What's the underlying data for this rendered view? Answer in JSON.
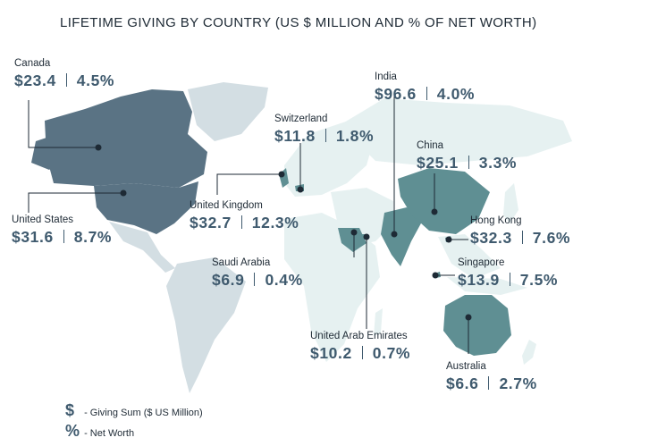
{
  "title": "LIFETIME GIVING BY COUNTRY (US $ MILLION AND % OF NET WORTH)",
  "colors": {
    "highlight": "#5f8f93",
    "north_america": "#5a7384",
    "land": "#d3dee3",
    "land_light": "#e6f1f1",
    "text": "#1e2a35",
    "value": "#3f5a6e"
  },
  "entries": [
    {
      "country": "Canada",
      "sum": "$23.4",
      "pct": "4.5%"
    },
    {
      "country": "United States",
      "sum": "$31.6",
      "pct": "8.7%"
    },
    {
      "country": "United Kingdom",
      "sum": "$32.7",
      "pct": "12.3%"
    },
    {
      "country": "Switzerland",
      "sum": "$11.8",
      "pct": "1.8%"
    },
    {
      "country": "Saudi Arabia",
      "sum": "$6.9",
      "pct": "0.4%"
    },
    {
      "country": "United Arab Emirates",
      "sum": "$10.2",
      "pct": "0.7%"
    },
    {
      "country": "India",
      "sum": "$96.6",
      "pct": "4.0%"
    },
    {
      "country": "China",
      "sum": "$25.1",
      "pct": "3.3%"
    },
    {
      "country": "Hong Kong",
      "sum": "$32.3",
      "pct": "7.6%"
    },
    {
      "country": "Singapore",
      "sum": "$13.9",
      "pct": "7.5%"
    },
    {
      "country": "Australia",
      "sum": "$6.6",
      "pct": "2.7%"
    }
  ],
  "legend": [
    {
      "symbol": "$",
      "text": "- Giving Sum ($ US Million)"
    },
    {
      "symbol": "%",
      "text": "- Net Worth"
    }
  ]
}
